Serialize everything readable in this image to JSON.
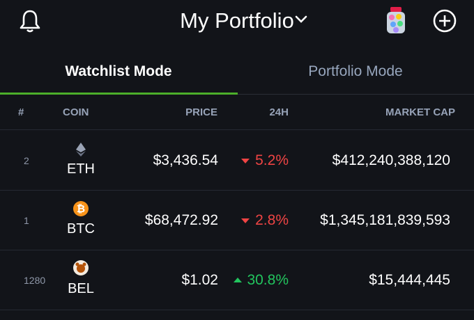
{
  "header": {
    "title": "My Portfolio"
  },
  "tabs": [
    "Watchlist Mode",
    "Portfolio Mode"
  ],
  "table": {
    "columns": [
      "#",
      "COIN",
      "PRICE",
      "24H",
      "MARKET CAP"
    ],
    "rows": [
      {
        "rank": "2",
        "coin": "ETH",
        "price": "$3,436.54",
        "change": "5.2%",
        "trend": "down",
        "market_cap": "$412,240,388,120"
      },
      {
        "rank": "1",
        "coin": "BTC",
        "price": "$68,472.92",
        "change": "2.8%",
        "trend": "down",
        "market_cap": "$1,345,181,839,593"
      },
      {
        "rank": "1280",
        "coin": "BEL",
        "price": "$1.02",
        "change": "30.8%",
        "trend": "up",
        "market_cap": "$15,444,445"
      }
    ]
  }
}
